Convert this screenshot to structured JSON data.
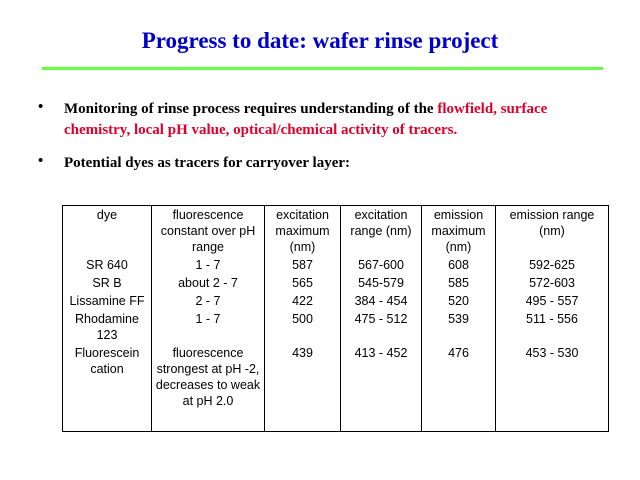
{
  "title": "Progress to date: wafer rinse project",
  "bullets": [
    {
      "text": "Monitoring of rinse process requires understanding of the ",
      "highlight": "flowfield, surface chemistry, local pH value, optical/chemical activity of tracers."
    },
    {
      "text": "Potential dyes as tracers for carryover layer:"
    }
  ],
  "table": {
    "header": [
      "dye",
      "fluorescence constant over pH range",
      "excitation maximum (nm)",
      "excitation range (nm)",
      "emission maximum (nm)",
      "emission range (nm)"
    ],
    "rows": [
      [
        "SR 640",
        "1 - 7",
        "587",
        "567-600",
        "608",
        "592-625"
      ],
      [
        "SR B",
        "about 2 - 7",
        "565",
        "545-579",
        "585",
        "572-603"
      ],
      [
        "Lissamine FF",
        "2 - 7",
        "422",
        "384 - 454",
        "520",
        "495 - 557"
      ],
      [
        "Rhodamine 123",
        "1 - 7",
        "500",
        "475 - 512",
        "539",
        "511 - 556"
      ],
      [
        "Fluorescein cation",
        "fluorescence strongest at pH -2, decreases to weak at pH 2.0",
        "439",
        "413 - 452",
        "476",
        "453 - 530"
      ]
    ]
  }
}
